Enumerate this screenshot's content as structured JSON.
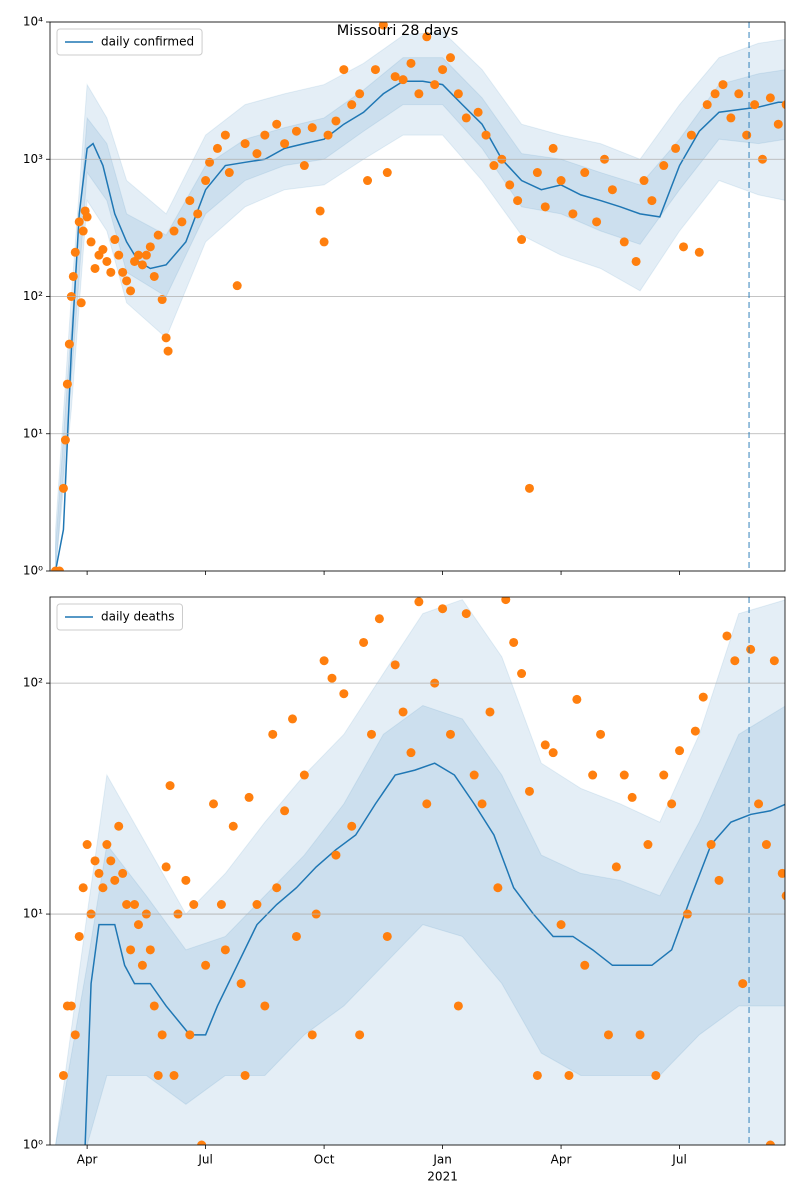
{
  "chart_data": [
    {
      "type": "line",
      "title": "Missouri 28 days",
      "log": true,
      "grid": "y",
      "legend": "upper left",
      "xlim": [
        2.06,
        20.67
      ],
      "ylim": [
        1,
        10000
      ],
      "yticks": [
        {
          "value": 1,
          "label": "10⁰"
        },
        {
          "value": 10,
          "label": "10¹"
        },
        {
          "value": 100,
          "label": "10²"
        },
        {
          "value": 1000,
          "label": "10³"
        },
        {
          "value": 10000,
          "label": "10⁴"
        }
      ],
      "vline": 19.76,
      "series": [
        {
          "name": "daily confirmed",
          "color": "#1f77b4",
          "x": [
            2.2,
            2.4,
            2.6,
            2.8,
            3.0,
            3.15,
            3.4,
            3.7,
            4.0,
            4.3,
            4.6,
            5.0,
            5.5,
            6.0,
            6.5,
            7.0,
            7.5,
            8.0,
            8.5,
            9.0,
            9.5,
            10.0,
            10.5,
            11.0,
            11.5,
            12.0,
            12.5,
            13.0,
            13.5,
            14.0,
            14.5,
            15.0,
            15.5,
            16.0,
            16.5,
            17.0,
            17.5,
            18.0,
            18.5,
            19.0,
            19.5,
            20.0,
            20.5,
            20.7
          ],
          "values": [
            1,
            2,
            40,
            400,
            1200,
            1300,
            900,
            400,
            250,
            180,
            160,
            170,
            250,
            600,
            900,
            950,
            1000,
            1200,
            1300,
            1400,
            1800,
            2200,
            3000,
            3700,
            3700,
            3500,
            2500,
            1800,
            1000,
            700,
            600,
            650,
            550,
            500,
            450,
            400,
            380,
            900,
            1600,
            2200,
            2300,
            2400,
            2600,
            2600
          ]
        }
      ],
      "bands": [
        {
          "color": "#1f77b4",
          "x": [
            2.2,
            2.6,
            3.0,
            3.5,
            4.0,
            5.0,
            6.0,
            7.0,
            8.0,
            9.0,
            10.0,
            11.0,
            12.0,
            13.0,
            14.0,
            15.0,
            16.0,
            17.0,
            18.0,
            19.0,
            20.0,
            20.7
          ],
          "lower": [
            1,
            15,
            500,
            300,
            90,
            50,
            250,
            450,
            600,
            650,
            1000,
            1500,
            1500,
            700,
            280,
            200,
            160,
            110,
            300,
            700,
            550,
            500
          ],
          "upper": [
            2,
            100,
            3500,
            2000,
            700,
            400,
            1500,
            2500,
            3000,
            3500,
            5000,
            8000,
            8500,
            4500,
            1800,
            1500,
            1300,
            1000,
            2500,
            5500,
            7000,
            7500
          ]
        },
        {
          "color": "#1f77b4",
          "x": [
            2.2,
            2.6,
            3.0,
            3.5,
            4.0,
            5.0,
            6.0,
            7.0,
            8.0,
            9.0,
            10.0,
            11.0,
            12.0,
            13.0,
            14.0,
            15.0,
            16.0,
            17.0,
            18.0,
            19.0,
            20.0,
            20.7
          ],
          "lower": [
            1,
            25,
            800,
            500,
            150,
            100,
            400,
            700,
            900,
            1000,
            1600,
            2500,
            2500,
            1200,
            450,
            400,
            300,
            240,
            600,
            1400,
            1300,
            1400
          ],
          "upper": [
            1.5,
            60,
            2000,
            1300,
            400,
            280,
            900,
            1400,
            1700,
            2000,
            3200,
            5500,
            5500,
            2800,
            1100,
            1000,
            800,
            650,
            1400,
            3500,
            4200,
            4500
          ]
        }
      ],
      "scatter": {
        "color": "#ff7f0e",
        "x": [
          2.2,
          2.3,
          2.4,
          2.45,
          2.5,
          2.55,
          2.6,
          2.65,
          2.7,
          2.8,
          2.85,
          2.9,
          2.95,
          3.0,
          3.1,
          3.2,
          3.3,
          3.4,
          3.5,
          3.6,
          3.7,
          3.8,
          3.9,
          4.0,
          4.1,
          4.2,
          4.3,
          4.4,
          4.5,
          4.6,
          4.7,
          4.8,
          4.9,
          5.0,
          5.05,
          5.2,
          5.4,
          5.6,
          5.8,
          6.0,
          6.1,
          6.3,
          6.5,
          6.6,
          6.8,
          7.0,
          7.3,
          7.5,
          7.8,
          8.0,
          8.3,
          8.5,
          8.7,
          8.9,
          9.0,
          9.1,
          9.3,
          9.5,
          9.7,
          9.9,
          10.1,
          10.3,
          10.5,
          10.6,
          10.8,
          11.0,
          11.2,
          11.4,
          11.6,
          11.8,
          12.0,
          12.2,
          12.4,
          12.6,
          12.9,
          13.1,
          13.3,
          13.5,
          13.7,
          13.9,
          14.0,
          14.2,
          14.4,
          14.6,
          14.8,
          15.0,
          15.3,
          15.6,
          15.9,
          16.1,
          16.3,
          16.6,
          16.9,
          17.1,
          17.3,
          17.6,
          17.9,
          18.1,
          18.3,
          18.5,
          18.7,
          18.9,
          19.1,
          19.3,
          19.5,
          19.7,
          19.9,
          20.1,
          20.3,
          20.5,
          20.7
        ],
        "values": [
          1,
          1,
          4,
          9,
          23,
          45,
          100,
          140,
          210,
          350,
          90,
          300,
          420,
          380,
          250,
          160,
          200,
          220,
          180,
          150,
          260,
          200,
          150,
          130,
          110,
          180,
          200,
          170,
          200,
          230,
          140,
          280,
          95,
          50,
          40,
          300,
          350,
          500,
          400,
          700,
          950,
          1200,
          1500,
          800,
          120,
          1300,
          1100,
          1500,
          1800,
          1300,
          1600,
          900,
          1700,
          420,
          250,
          1500,
          1900,
          4500,
          2500,
          3000,
          700,
          4500,
          9500,
          800,
          4000,
          3800,
          5000,
          3000,
          7800,
          3500,
          4500,
          5500,
          3000,
          2000,
          2200,
          1500,
          900,
          1000,
          650,
          500,
          260,
          4,
          800,
          450,
          1200,
          700,
          400,
          800,
          350,
          1000,
          600,
          250,
          180,
          700,
          500,
          900,
          1200,
          230,
          1500,
          210,
          2500,
          3000,
          3500,
          2000,
          3000,
          1500,
          2500,
          1000,
          2800,
          1800,
          2500
        ]
      }
    },
    {
      "type": "line",
      "log": true,
      "grid": "y",
      "legend": "upper left",
      "xlim": [
        2.06,
        20.67
      ],
      "ylim": [
        1,
        236
      ],
      "yticks": [
        {
          "value": 1,
          "label": "10⁰"
        },
        {
          "value": 10,
          "label": "10¹"
        },
        {
          "value": 100,
          "label": "10²"
        }
      ],
      "xticks": [
        {
          "value": 3,
          "label": "Apr"
        },
        {
          "value": 6,
          "label": "Jul"
        },
        {
          "value": 9,
          "label": "Oct"
        },
        {
          "value": 12,
          "label": "Jan"
        },
        {
          "value": 15,
          "label": "Apr"
        },
        {
          "value": 18,
          "label": "Jul"
        }
      ],
      "year_label": {
        "x": 12,
        "text": "2021"
      },
      "vline": 19.76,
      "series": [
        {
          "name": "daily deaths",
          "color": "#1f77b4",
          "x": [
            2.95,
            3.1,
            3.3,
            3.7,
            3.95,
            4.2,
            4.6,
            5.0,
            5.6,
            6.0,
            6.3,
            6.8,
            7.3,
            7.8,
            8.3,
            8.8,
            9.3,
            9.8,
            10.3,
            10.8,
            11.3,
            11.8,
            12.3,
            12.8,
            13.3,
            13.8,
            14.3,
            14.8,
            15.3,
            15.8,
            16.3,
            16.8,
            17.3,
            17.8,
            18.3,
            18.8,
            19.3,
            19.8,
            20.3,
            20.7
          ],
          "values": [
            1,
            5,
            9,
            9,
            6,
            5,
            5,
            4,
            3,
            3,
            4,
            6,
            9,
            11,
            13,
            16,
            19,
            22,
            30,
            40,
            42,
            45,
            40,
            30,
            22,
            13,
            10,
            8,
            8,
            7,
            6,
            6,
            6,
            7,
            12,
            20,
            25,
            27,
            28,
            30
          ]
        }
      ],
      "bands": [
        {
          "color": "#1f77b4",
          "x": [
            2.2,
            3.0,
            3.5,
            4.5,
            5.5,
            6.5,
            7.5,
            8.5,
            9.5,
            10.5,
            11.5,
            12.5,
            13.5,
            14.5,
            15.5,
            16.5,
            17.5,
            18.5,
            19.5,
            20.7
          ],
          "lower": [
            1,
            1,
            1,
            1,
            1,
            1,
            1,
            1,
            1,
            1,
            1,
            1,
            1,
            1,
            1,
            1,
            1,
            1,
            1,
            1
          ],
          "upper": [
            1,
            10,
            40,
            20,
            10,
            15,
            25,
            40,
            60,
            110,
            200,
            230,
            130,
            45,
            35,
            30,
            25,
            60,
            200,
            230
          ]
        },
        {
          "color": "#1f77b4",
          "x": [
            2.2,
            3.0,
            3.5,
            4.5,
            5.5,
            6.5,
            7.5,
            8.5,
            9.5,
            10.5,
            11.5,
            12.5,
            13.5,
            14.5,
            15.5,
            16.5,
            17.5,
            18.5,
            19.5,
            20.7
          ],
          "lower": [
            1,
            1,
            2,
            2,
            1.5,
            2,
            2,
            3,
            4,
            6,
            9,
            8,
            5,
            2.5,
            2,
            2,
            2,
            3,
            4,
            4
          ],
          "upper": [
            1,
            6,
            20,
            12,
            7,
            8,
            12,
            18,
            30,
            60,
            80,
            70,
            40,
            18,
            15,
            14,
            12,
            25,
            60,
            80
          ]
        }
      ],
      "scatter": {
        "color": "#ff7f0e",
        "x": [
          2.4,
          2.5,
          2.6,
          2.7,
          2.8,
          2.9,
          3.0,
          3.1,
          3.2,
          3.3,
          3.4,
          3.5,
          3.6,
          3.7,
          3.8,
          3.9,
          4.0,
          4.1,
          4.2,
          4.3,
          4.4,
          4.5,
          4.6,
          4.7,
          4.8,
          4.9,
          5.0,
          5.1,
          5.2,
          5.3,
          5.5,
          5.6,
          5.7,
          5.9,
          6.0,
          6.2,
          6.4,
          6.5,
          6.7,
          6.9,
          7.0,
          7.1,
          7.3,
          7.5,
          7.7,
          7.8,
          8.0,
          8.2,
          8.3,
          8.5,
          8.7,
          8.8,
          9.0,
          9.2,
          9.3,
          9.5,
          9.7,
          9.9,
          10.0,
          10.2,
          10.4,
          10.6,
          10.8,
          11.0,
          11.2,
          11.4,
          11.6,
          11.8,
          12.0,
          12.2,
          12.4,
          12.6,
          12.8,
          13.0,
          13.2,
          13.4,
          13.6,
          13.8,
          14.0,
          14.2,
          14.4,
          14.6,
          14.8,
          15.0,
          15.2,
          15.4,
          15.6,
          15.8,
          16.0,
          16.2,
          16.4,
          16.6,
          16.8,
          17.0,
          17.2,
          17.4,
          17.6,
          17.8,
          18.0,
          18.2,
          18.4,
          18.6,
          18.8,
          19.0,
          19.2,
          19.4,
          19.6,
          19.8,
          20.0,
          20.2,
          20.3,
          20.4,
          20.6,
          20.7
        ],
        "values": [
          2,
          4,
          4,
          3,
          8,
          13,
          20,
          10,
          17,
          15,
          13,
          20,
          17,
          14,
          24,
          15,
          11,
          7,
          11,
          9,
          6,
          10,
          7,
          4,
          2,
          3,
          16,
          36,
          2,
          10,
          14,
          3,
          11,
          1,
          6,
          30,
          11,
          7,
          24,
          5,
          2,
          32,
          11,
          4,
          60,
          13,
          28,
          70,
          8,
          40,
          3,
          10,
          125,
          105,
          18,
          90,
          24,
          3,
          150,
          60,
          190,
          8,
          120,
          75,
          50,
          225,
          30,
          100,
          210,
          60,
          4,
          200,
          40,
          30,
          75,
          13,
          230,
          150,
          110,
          34,
          2,
          54,
          50,
          9,
          2,
          85,
          6,
          40,
          60,
          3,
          16,
          40,
          32,
          3,
          20,
          2,
          40,
          30,
          51,
          10,
          62,
          87,
          20,
          14,
          160,
          125,
          5,
          140,
          30,
          20,
          1,
          125,
          15,
          12
        ]
      }
    }
  ]
}
